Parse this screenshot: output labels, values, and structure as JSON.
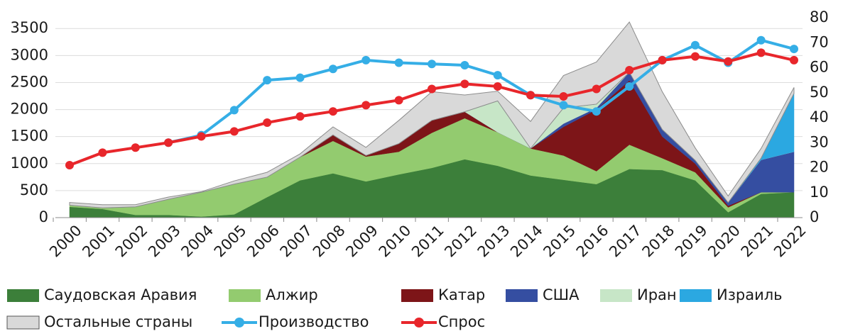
{
  "chart_data": {
    "type": "stacked-area-line",
    "x": [
      "2000",
      "2001",
      "2002",
      "2003",
      "2004",
      "2005",
      "2006",
      "2007",
      "2008",
      "2009",
      "2010",
      "2011",
      "2012",
      "2013",
      "2014",
      "2015",
      "2016",
      "2017",
      "2018",
      "2019",
      "2020",
      "2021",
      "2022"
    ],
    "series": [
      {
        "name": "Саудовская Аравия",
        "color": "#3c7f3a",
        "kind": "area",
        "values": [
          200,
          160,
          50,
          50,
          20,
          60,
          380,
          690,
          820,
          670,
          800,
          920,
          1080,
          960,
          780,
          700,
          620,
          900,
          880,
          690,
          100,
          440,
          470
        ]
      },
      {
        "name": "Алжир",
        "color": "#93cb6f",
        "kind": "area",
        "values": [
          30,
          20,
          150,
          290,
          450,
          560,
          370,
          430,
          600,
          460,
          420,
          650,
          760,
          620,
          500,
          450,
          240,
          450,
          220,
          150,
          90,
          30,
          0
        ]
      },
      {
        "name": "Катар",
        "color": "#7d1518",
        "kind": "area",
        "values": [
          0,
          0,
          0,
          0,
          0,
          0,
          0,
          0,
          110,
          20,
          150,
          230,
          120,
          0,
          0,
          530,
          1140,
          1190,
          400,
          160,
          30,
          0,
          0
        ]
      },
      {
        "name": "США",
        "color": "#354ea1",
        "kind": "area",
        "values": [
          0,
          0,
          0,
          0,
          0,
          0,
          0,
          0,
          0,
          0,
          0,
          0,
          0,
          0,
          0,
          60,
          30,
          150,
          130,
          60,
          60,
          600,
          750
        ]
      },
      {
        "name": "Иран",
        "color": "#c7e6c7",
        "kind": "area",
        "values": [
          0,
          0,
          0,
          0,
          0,
          0,
          0,
          0,
          0,
          0,
          0,
          0,
          0,
          580,
          0,
          290,
          70,
          0,
          0,
          0,
          0,
          0,
          0
        ]
      },
      {
        "name": "Израиль",
        "color": "#2ba8e1",
        "kind": "area",
        "values": [
          0,
          0,
          0,
          0,
          0,
          0,
          0,
          0,
          0,
          0,
          0,
          0,
          0,
          0,
          0,
          0,
          0,
          0,
          0,
          0,
          0,
          30,
          1080
        ]
      },
      {
        "name": "Остальные страны",
        "color": "#d9d9d9",
        "kind": "area",
        "values": [
          50,
          60,
          40,
          40,
          10,
          60,
          90,
          60,
          150,
          150,
          430,
          530,
          310,
          180,
          500,
          600,
          780,
          930,
          700,
          230,
          120,
          180,
          110
        ]
      },
      {
        "name": "Производство",
        "color": "#35aee6",
        "kind": "line",
        "axis": "y2",
        "values": [
          null,
          null,
          null,
          30,
          33,
          43,
          55,
          56,
          59.5,
          63,
          62,
          61.5,
          61,
          57,
          49,
          45,
          42.5,
          52.5,
          63,
          69,
          62,
          71,
          67.5
        ]
      },
      {
        "name": "Спрос",
        "color": "#e8262b",
        "kind": "line",
        "axis": "y2",
        "values": [
          21,
          26,
          28,
          30,
          32.5,
          34.5,
          38,
          40.5,
          42.5,
          45,
          47,
          51.5,
          53.5,
          52.5,
          49,
          48.5,
          51.5,
          59,
          63,
          64.5,
          62.5,
          66,
          63
        ]
      }
    ],
    "ylim": [
      0,
      3700
    ],
    "yticks": [
      0,
      500,
      1000,
      1500,
      2000,
      2500,
      3000,
      3500
    ],
    "y2lim": [
      0,
      80
    ],
    "y2ticks": [
      0,
      10,
      20,
      30,
      40,
      50,
      60,
      70,
      80
    ],
    "grid": true,
    "legend": "bottom"
  }
}
